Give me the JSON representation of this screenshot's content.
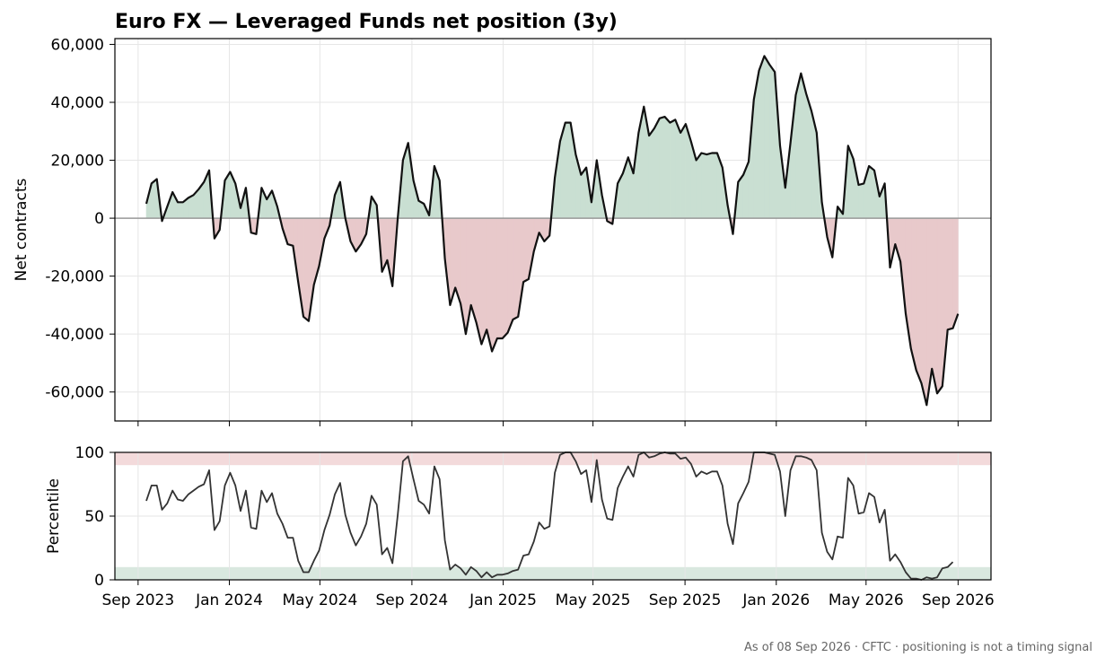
{
  "chart_data": [
    {
      "type": "area",
      "title": "Euro FX — Leveraged Funds net position (3y)",
      "xlabel": "",
      "ylabel": "Net contracts",
      "x_start": "2023-09-12",
      "x_interval_days": 7,
      "xlim": [
        "2023-08-01",
        "2026-10-15"
      ],
      "ylim": [
        -70000,
        62000
      ],
      "y_ticks": [
        -60000,
        -40000,
        -20000,
        0,
        20000,
        40000,
        60000
      ],
      "x_ticks": [
        {
          "date": "2023-09-01",
          "label": "Sep 2023"
        },
        {
          "date": "2024-01-01",
          "label": "Jan 2024"
        },
        {
          "date": "2024-05-01",
          "label": "May 2024"
        },
        {
          "date": "2024-09-01",
          "label": "Sep 2024"
        },
        {
          "date": "2025-01-01",
          "label": "Jan 2025"
        },
        {
          "date": "2025-05-01",
          "label": "May 2025"
        },
        {
          "date": "2025-09-01",
          "label": "Sep 2025"
        },
        {
          "date": "2026-01-01",
          "label": "Jan 2026"
        },
        {
          "date": "2026-05-01",
          "label": "May 2026"
        },
        {
          "date": "2026-09-01",
          "label": "Sep 2026"
        }
      ],
      "grid": true,
      "zero_line": true,
      "colors": {
        "line": "#111111",
        "positive_fill": "#c9dfd2",
        "negative_fill": "#e8c9cb",
        "zero_line": "#999999"
      },
      "series": [
        {
          "values": [
            5000,
            12000,
            13500,
            -1000,
            4000,
            9000,
            5500,
            5500,
            7000,
            8000,
            10000,
            12500,
            16500,
            -7000,
            -4000,
            13000,
            16000,
            12000,
            3500,
            10500,
            -5000,
            -5500,
            10500,
            6500,
            9500,
            4000,
            -3500,
            -9000,
            -9500,
            -22000,
            -34000,
            -35500,
            -23000,
            -16500,
            -7000,
            -2500,
            8000,
            12500,
            0,
            -8000,
            -11500,
            -9000,
            -5500,
            7500,
            4500,
            -18500,
            -14500,
            -23500,
            0,
            20000,
            26000,
            13000,
            6000,
            5000,
            1000,
            18000,
            13000,
            -14000,
            -30000,
            -24000,
            -29500,
            -40000,
            -30000,
            -36000,
            -43500,
            -38500,
            -46000,
            -41500,
            -41500,
            -39500,
            -35000,
            -34000,
            -22000,
            -21000,
            -11500,
            -5000,
            -8000,
            -6000,
            14000,
            26500,
            33000,
            33000,
            22000,
            15000,
            17500,
            5500,
            20000,
            8000,
            -1000,
            -2000,
            12000,
            15500,
            21000,
            15500,
            29500,
            38500,
            28500,
            31000,
            34500,
            35000,
            33000,
            34000,
            29500,
            32500,
            26500,
            20000,
            22500,
            22000,
            22500,
            22500,
            17500,
            4500,
            -5500,
            12500,
            15000,
            19500,
            41000,
            51000,
            56000,
            53000,
            50500,
            25000,
            10500,
            26000,
            42500,
            50000,
            43000,
            37000,
            29500,
            5500,
            -6500,
            -13500,
            4000,
            1500,
            25000,
            20500,
            11500,
            12000,
            18000,
            16500,
            7500,
            12000,
            -17000,
            -9000,
            -15000,
            -33000,
            -45000,
            -52500,
            -57000,
            -64500,
            -52000,
            -60500,
            -58000,
            -38500,
            -38000,
            -33000
          ]
        }
      ]
    },
    {
      "type": "line",
      "xlabel": "",
      "ylabel": "Percentile",
      "ylim": [
        0,
        100
      ],
      "y_ticks": [
        0,
        50,
        100
      ],
      "bands": [
        {
          "from": 90,
          "to": 100,
          "color": "#f3dadb"
        },
        {
          "from": 0,
          "to": 10,
          "color": "#d9e8df"
        }
      ],
      "grid": true,
      "colors": {
        "line": "#333333"
      },
      "series": [
        {
          "values": [
            62,
            74,
            74,
            55,
            60,
            70,
            63,
            62,
            67,
            70,
            73,
            75,
            86,
            39,
            46,
            74,
            84,
            74,
            54,
            70,
            41,
            40,
            70,
            61,
            68,
            52,
            44,
            33,
            33,
            15,
            6,
            6,
            15,
            23,
            39,
            51,
            67,
            76,
            51,
            37,
            27,
            34,
            44,
            66,
            59,
            20,
            25,
            13,
            51,
            93,
            97,
            79,
            62,
            59,
            52,
            89,
            79,
            31,
            8,
            12,
            9,
            4,
            10,
            7,
            2,
            6,
            2,
            4,
            4,
            5,
            7,
            8,
            19,
            20,
            30,
            45,
            40,
            42,
            84,
            98,
            100,
            100,
            93,
            83,
            86,
            61,
            94,
            63,
            48,
            47,
            72,
            81,
            89,
            81,
            98,
            100,
            96,
            97,
            99,
            100,
            99,
            99,
            95,
            96,
            91,
            81,
            85,
            83,
            85,
            85,
            74,
            44,
            28,
            60,
            68,
            77,
            100,
            100,
            100,
            99,
            98,
            85,
            50,
            86,
            97,
            97,
            96,
            94,
            86,
            37,
            22,
            16,
            34,
            33,
            80,
            74,
            52,
            53,
            68,
            65,
            45,
            55,
            15,
            20,
            14,
            6,
            1,
            1,
            0,
            2,
            1,
            2,
            9,
            10,
            14
          ]
        }
      ]
    }
  ],
  "footer": {
    "note": "As of 08 Sep 2026 · CFTC · positioning is not a timing signal"
  }
}
